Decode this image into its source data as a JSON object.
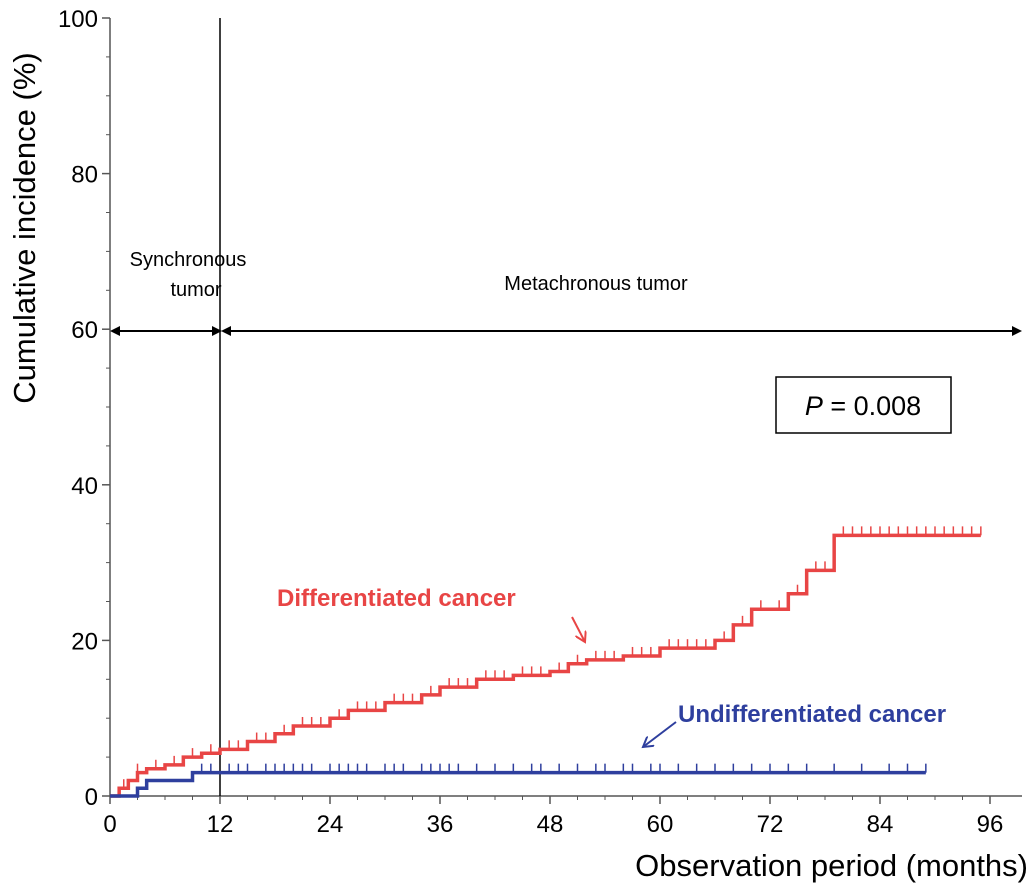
{
  "chart_data": {
    "type": "line",
    "title": "",
    "xlabel": "Observation period (months)",
    "ylabel": "Cumulative incidence (%)",
    "xlim": [
      0,
      96
    ],
    "ylim": [
      0,
      100
    ],
    "xticks": [
      0,
      12,
      24,
      36,
      48,
      60,
      72,
      84,
      96
    ],
    "yticks": [
      0,
      20,
      40,
      60,
      80,
      100
    ],
    "grid": false,
    "annotations": {
      "synchronous_label": [
        "Synchronous",
        "tumor"
      ],
      "metachronous_label": "Metachronous tumor",
      "p_value_italic": "P",
      "p_value_rest": " = 0.008"
    },
    "series": [
      {
        "name": "Differentiated cancer",
        "color": "#e84545",
        "step": true,
        "points": [
          [
            0,
            0
          ],
          [
            1,
            1
          ],
          [
            2,
            2
          ],
          [
            3,
            3
          ],
          [
            4,
            3.5
          ],
          [
            6,
            4
          ],
          [
            8,
            5
          ],
          [
            10,
            5.5
          ],
          [
            12,
            6
          ],
          [
            15,
            7
          ],
          [
            18,
            8
          ],
          [
            20,
            9
          ],
          [
            24,
            10
          ],
          [
            26,
            11
          ],
          [
            30,
            12
          ],
          [
            34,
            13
          ],
          [
            36,
            14
          ],
          [
            40,
            15
          ],
          [
            44,
            15.5
          ],
          [
            48,
            16
          ],
          [
            50,
            17
          ],
          [
            52,
            17.5
          ],
          [
            56,
            18
          ],
          [
            60,
            19
          ],
          [
            66,
            20
          ],
          [
            68,
            22
          ],
          [
            70,
            24
          ],
          [
            74,
            26
          ],
          [
            76,
            29
          ],
          [
            79,
            33.5
          ],
          [
            95,
            33.5
          ]
        ],
        "censor_ticks": [
          1.5,
          3,
          5,
          7,
          9,
          11,
          13,
          14,
          16,
          17,
          19,
          21,
          22,
          23,
          25,
          27,
          28,
          29,
          31,
          32,
          33,
          35,
          37,
          38,
          39,
          41,
          42,
          43,
          45,
          46,
          47,
          49,
          51,
          53,
          54,
          55,
          57,
          58,
          59,
          61,
          62,
          63,
          64,
          65,
          67,
          69,
          71,
          73,
          75,
          77,
          78,
          80,
          81,
          82,
          83,
          84,
          85,
          86,
          87,
          88,
          89,
          90,
          91,
          92,
          93,
          94,
          95
        ]
      },
      {
        "name": "Undifferentiated cancer",
        "color": "#2e3f9e",
        "step": true,
        "points": [
          [
            0,
            0
          ],
          [
            3,
            1
          ],
          [
            4,
            2
          ],
          [
            8,
            2
          ],
          [
            9,
            3
          ],
          [
            89,
            3
          ]
        ],
        "censor_ticks": [
          10,
          11,
          13,
          14,
          15,
          17,
          18,
          19,
          20,
          21,
          22,
          24,
          25,
          26,
          27,
          28,
          30,
          31,
          32,
          34,
          35,
          36,
          37,
          38,
          40,
          42,
          44,
          46,
          47,
          49,
          51,
          53,
          54,
          56,
          57,
          59,
          60,
          62,
          64,
          66,
          68,
          70,
          72,
          74,
          76,
          79,
          82,
          85,
          87,
          89
        ]
      }
    ]
  }
}
